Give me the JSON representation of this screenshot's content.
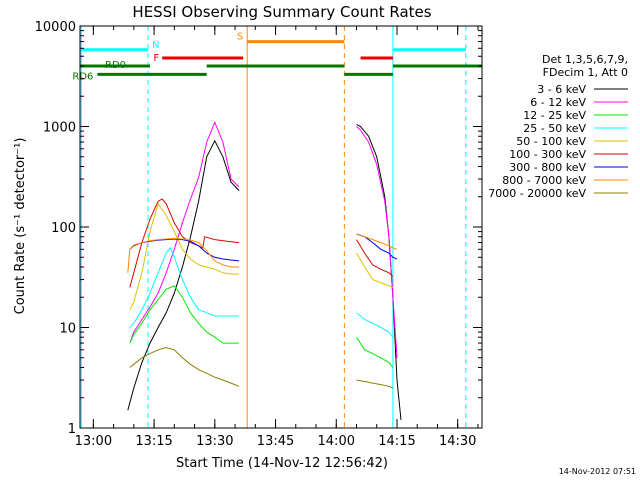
{
  "chart_data": {
    "type": "line",
    "title": "HESSI Observing Summary Count Rates",
    "xlabel": "Start Time (14-Nov-12 12:56:42)",
    "ylabel": "Count Rate (s⁻¹ detector⁻¹)",
    "yscale": "log",
    "ylim": [
      1,
      10000
    ],
    "xlim": [
      "12:56:42",
      "14:36:00"
    ],
    "x_ticks": [
      "13:00",
      "13:15",
      "13:30",
      "13:45",
      "14:00",
      "14:15",
      "14:30"
    ],
    "y_ticks": [
      "1",
      "10",
      "100",
      "1000",
      "10000"
    ],
    "footer_timestamp": "14-Nov-2012 07:51",
    "legend": {
      "placement": "right",
      "header": [
        "Det 1,3,5,6,7,9,",
        "FDecim 1, Att 0"
      ]
    },
    "series": [
      {
        "name": "3 - 6 keV",
        "color": "#000000",
        "x": [
          "13:08:30",
          "13:10:00",
          "13:12:00",
          "13:14:00",
          "13:16:00",
          "13:18:00",
          "13:20:00",
          "13:22:00",
          "13:24:00",
          "13:26:00",
          "13:28:00",
          "13:30:00",
          "13:32:00",
          "13:34:00",
          "13:36:00",
          null,
          "14:05:00",
          "14:06:00",
          "14:08:00",
          "14:10:00",
          "14:12:00",
          "14:13:00",
          "14:14:00",
          "14:15:00",
          "14:16:00"
        ],
        "y": [
          1.5,
          2.5,
          4.5,
          7,
          10,
          14,
          22,
          40,
          80,
          180,
          500,
          720,
          500,
          280,
          230,
          null,
          1050,
          1000,
          800,
          500,
          200,
          80,
          20,
          3,
          1.2
        ]
      },
      {
        "name": "6 - 12 keV",
        "color": "#ff00ff",
        "x": [
          "13:09:00",
          "13:10:00",
          "13:12:00",
          "13:14:00",
          "13:16:00",
          "13:18:00",
          "13:20:00",
          "13:22:00",
          "13:24:00",
          "13:26:00",
          "13:28:00",
          "13:30:00",
          "13:32:00",
          "13:34:00",
          "13:36:00",
          null,
          "14:05:00",
          "14:06:00",
          "14:08:00",
          "14:10:00",
          "14:12:00",
          "14:13:00",
          "14:14:00",
          "14:15:00"
        ],
        "y": [
          7,
          9,
          12,
          16,
          22,
          35,
          60,
          110,
          190,
          310,
          700,
          1100,
          700,
          300,
          250,
          null,
          1000,
          920,
          700,
          420,
          180,
          80,
          20,
          5
        ]
      },
      {
        "name": "12 - 25 keV",
        "color": "#00ee00",
        "x": [
          "13:09:00",
          "13:10:00",
          "13:12:00",
          "13:14:00",
          "13:16:00",
          "13:18:00",
          "13:20:00",
          "13:22:00",
          "13:24:00",
          "13:26:00",
          "13:28:00",
          "13:30:00",
          "13:32:00",
          "13:34:00",
          "13:36:00",
          null,
          "14:05:00",
          "14:07:00",
          "14:09:00",
          "14:11:00",
          "14:13:00",
          "14:14:00"
        ],
        "y": [
          7,
          8.5,
          11,
          15,
          19,
          24,
          26,
          20,
          14,
          11,
          9,
          8,
          7,
          7,
          7,
          null,
          8,
          6,
          5.5,
          5,
          4.5,
          4
        ]
      },
      {
        "name": "25 - 50 keV",
        "color": "#00ffff",
        "x": [
          "13:09:00",
          "13:10:00",
          "13:12:00",
          "13:14:00",
          "13:16:00",
          "13:18:00",
          "13:19:00",
          "13:20:00",
          "13:22:00",
          "13:24:00",
          "13:26:00",
          "13:28:00",
          "13:30:00",
          "13:32:00",
          "13:34:00",
          "13:36:00",
          null,
          "14:05:00",
          "14:07:00",
          "14:09:00",
          "14:11:00",
          "14:13:00",
          "14:14:00"
        ],
        "y": [
          10,
          11,
          15,
          22,
          35,
          55,
          62,
          50,
          30,
          20,
          15,
          14,
          13,
          13,
          13,
          13,
          null,
          14,
          12,
          11,
          10,
          9,
          8
        ]
      },
      {
        "name": "50 - 100 keV",
        "color": "#e0c000",
        "x": [
          "13:09:00",
          "13:10:00",
          "13:12:00",
          "13:14:00",
          "13:16:00",
          "13:18:00",
          "13:20:00",
          "13:22:00",
          "13:24:00",
          "13:26:00",
          "13:28:00",
          "13:30:00",
          "13:32:00",
          "13:34:00",
          "13:36:00",
          null,
          "14:05:00",
          "14:07:00",
          "14:09:00",
          "14:11:00",
          "14:13:00",
          "14:14:00"
        ],
        "y": [
          15,
          18,
          35,
          90,
          170,
          130,
          90,
          60,
          48,
          42,
          40,
          38,
          35,
          34,
          34,
          null,
          55,
          40,
          30,
          28,
          26,
          25
        ]
      },
      {
        "name": "100 - 300 keV",
        "color": "#dd0000",
        "x": [
          "13:09:00",
          "13:10:00",
          "13:12:00",
          "13:14:00",
          "13:16:00",
          "13:17:00",
          "13:18:00",
          "13:20:00",
          "13:22:00",
          "13:24:00",
          "13:26:00",
          "13:27:00",
          "13:27:30",
          "13:30:00",
          "13:33:00",
          "13:36:00",
          null,
          "14:05:00",
          "14:07:00",
          "14:09:00",
          "14:11:00",
          "14:13:00",
          "14:14:00"
        ],
        "y": [
          25,
          35,
          70,
          120,
          180,
          190,
          170,
          110,
          80,
          70,
          65,
          62,
          80,
          75,
          72,
          70,
          null,
          75,
          55,
          42,
          38,
          35,
          32
        ]
      },
      {
        "name": "300 - 800 keV",
        "color": "#0000ee",
        "x": [
          "13:09:00",
          "13:10:00",
          "13:12:00",
          "13:14:00",
          "13:16:00",
          "13:18:00",
          "13:20:00",
          "13:22:00",
          "13:24:00",
          "13:26:00",
          "13:28:00",
          "13:30:00",
          "13:32:00",
          "13:34:00",
          "13:36:00",
          null,
          "14:05:00",
          "14:07:00",
          "14:09:00",
          "14:11:00",
          "14:13:00",
          "14:14:00",
          "14:15:00"
        ],
        "y": [
          60,
          65,
          70,
          72,
          74,
          75,
          76,
          75,
          72,
          65,
          55,
          50,
          48,
          47,
          46,
          null,
          85,
          80,
          70,
          60,
          55,
          50,
          48
        ]
      },
      {
        "name": "800 - 7000 keV",
        "color": "#ff8800",
        "x": [
          "13:08:30",
          "13:09:00",
          "13:10:00",
          "13:12:00",
          "13:14:00",
          "13:16:00",
          "13:18:00",
          "13:20:00",
          "13:22:00",
          "13:24:00",
          "13:26:00",
          "13:28:00",
          "13:30:00",
          "13:32:00",
          "13:34:00",
          "13:36:00",
          null,
          "14:05:00",
          "14:07:00",
          "14:09:00",
          "14:11:00",
          "14:13:00",
          "14:14:00",
          "14:15:00"
        ],
        "y": [
          35,
          60,
          66,
          70,
          73,
          75,
          76,
          77,
          76,
          74,
          70,
          58,
          46,
          42,
          40,
          40,
          null,
          85,
          80,
          75,
          70,
          65,
          62,
          60
        ]
      },
      {
        "name": "7000 - 20000 keV",
        "color": "#8b7d00",
        "x": [
          "13:09:00",
          "13:10:00",
          "13:12:00",
          "13:14:00",
          "13:16:00",
          "13:18:00",
          "13:20:00",
          "13:22:00",
          "13:24:00",
          "13:26:00",
          "13:28:00",
          "13:30:00",
          "13:32:00",
          "13:34:00",
          "13:36:00",
          null,
          "14:05:00",
          "14:07:00",
          "14:09:00",
          "14:11:00",
          "14:13:00",
          "14:14:00"
        ],
        "y": [
          4,
          4.3,
          5,
          5.5,
          6,
          6.3,
          6,
          5,
          4.3,
          3.8,
          3.5,
          3.2,
          3,
          2.8,
          2.6,
          null,
          3,
          2.9,
          2.8,
          2.7,
          2.6,
          2.5
        ]
      }
    ],
    "status_bars": [
      {
        "label": "N",
        "color": "#00ffff",
        "level": 5800,
        "segments": [
          [
            "12:56:42",
            "13:13:30"
          ],
          [
            "14:14:00",
            "14:32:00"
          ]
        ]
      },
      {
        "label": "S",
        "color": "#ff8800",
        "level": 7000,
        "segments": [
          [
            "13:38:00",
            "14:02:00"
          ]
        ]
      },
      {
        "label": "F",
        "color": "#ee0000",
        "level": 4800,
        "segments": [
          [
            "13:17:00",
            "13:37:00"
          ],
          [
            "14:06:00",
            "14:14:00"
          ]
        ]
      },
      {
        "label": "RD0",
        "color": "#007700",
        "level": 4000,
        "segments": [
          [
            "12:56:42",
            "13:14:00"
          ],
          [
            "13:28:00",
            "14:02:00"
          ],
          [
            "14:14:00",
            "14:36:00"
          ]
        ]
      },
      {
        "label": "RD6",
        "color": "#007700",
        "level": 3300,
        "segments": [
          [
            "13:01:00",
            "13:28:00"
          ],
          [
            "14:02:00",
            "14:14:00"
          ]
        ]
      }
    ],
    "vlines": [
      {
        "x": "12:57:00",
        "color": "#00ffff",
        "style": "solid"
      },
      {
        "x": "13:13:30",
        "color": "#00ffff",
        "style": "dashed"
      },
      {
        "x": "13:38:00",
        "color": "#ff8800",
        "style": "solid"
      },
      {
        "x": "14:02:00",
        "color": "#ff8800",
        "style": "dashed"
      },
      {
        "x": "14:14:00",
        "color": "#00ffff",
        "style": "solid"
      },
      {
        "x": "14:32:00",
        "color": "#00ffff",
        "style": "dashed"
      }
    ],
    "grid": false
  }
}
